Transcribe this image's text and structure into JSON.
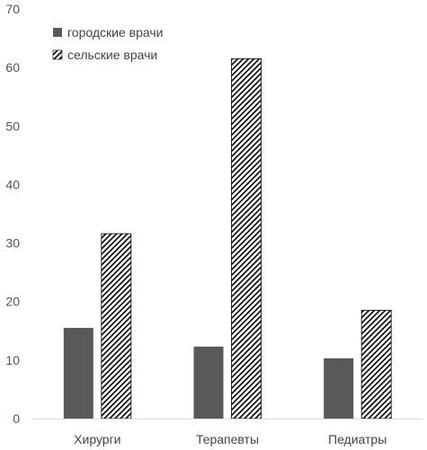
{
  "chart_data": {
    "type": "bar",
    "title": "",
    "xlabel": "",
    "ylabel": "",
    "categories": [
      "Хирурги",
      "Терапевты",
      "Педиатры"
    ],
    "series": [
      {
        "name": "городские врачи",
        "values": [
          15.5,
          12.3,
          10.3
        ],
        "color": "#595959",
        "pattern": "solid"
      },
      {
        "name": "сельские врачи",
        "values": [
          31.6,
          61.5,
          18.5
        ],
        "color": "#000000",
        "pattern": "diagonal-hatch"
      }
    ],
    "ylim": [
      0,
      70
    ],
    "yticks": [
      0,
      10,
      20,
      30,
      40,
      50,
      60,
      70
    ],
    "grid": false,
    "legend_position": "top-left"
  }
}
